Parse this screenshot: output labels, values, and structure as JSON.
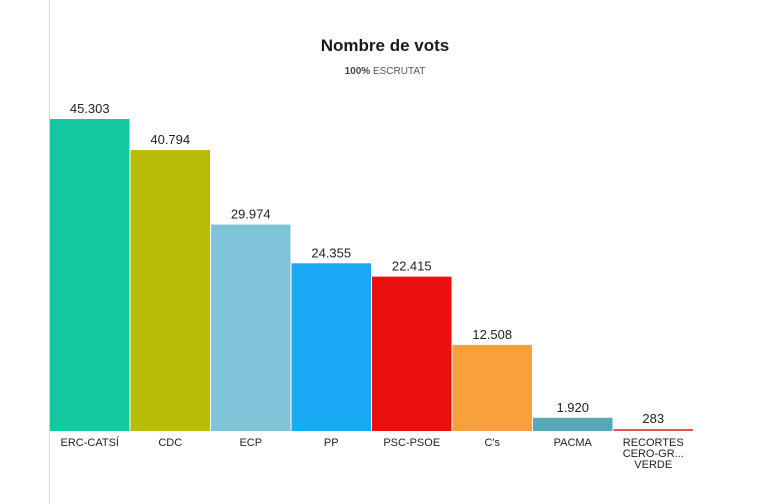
{
  "chart_data": {
    "type": "bar",
    "title": "Nombre de vots",
    "subtitle_pct": "100%",
    "subtitle_text": "ESCRUTAT",
    "xlabel": "",
    "ylabel": "",
    "ylim": [
      0,
      45303
    ],
    "grid": false,
    "categories": [
      "ERC-CATSÍ",
      "CDC",
      "ECP",
      "PP",
      "PSC-PSOE",
      "C's",
      "PACMA",
      "RECORTES CERO-GR... VERDE"
    ],
    "category_lines": [
      [
        "ERC-CATSÍ"
      ],
      [
        "CDC"
      ],
      [
        "ECP"
      ],
      [
        "PP"
      ],
      [
        "PSC-PSOE"
      ],
      [
        "C's"
      ],
      [
        "PACMA"
      ],
      [
        "RECORTES",
        "CERO-GR...",
        "VERDE"
      ]
    ],
    "values": [
      45303,
      40794,
      29974,
      24355,
      22415,
      12508,
      1920,
      283
    ],
    "value_labels": [
      "45.303",
      "40.794",
      "29.974",
      "24.355",
      "22.415",
      "12.508",
      "1.920",
      "283"
    ],
    "colors": [
      "#14c8a1",
      "#b8bc08",
      "#7fc3d8",
      "#19a9f5",
      "#ea0f0f",
      "#f8a13c",
      "#56a8b9",
      "#ea4c52"
    ]
  }
}
